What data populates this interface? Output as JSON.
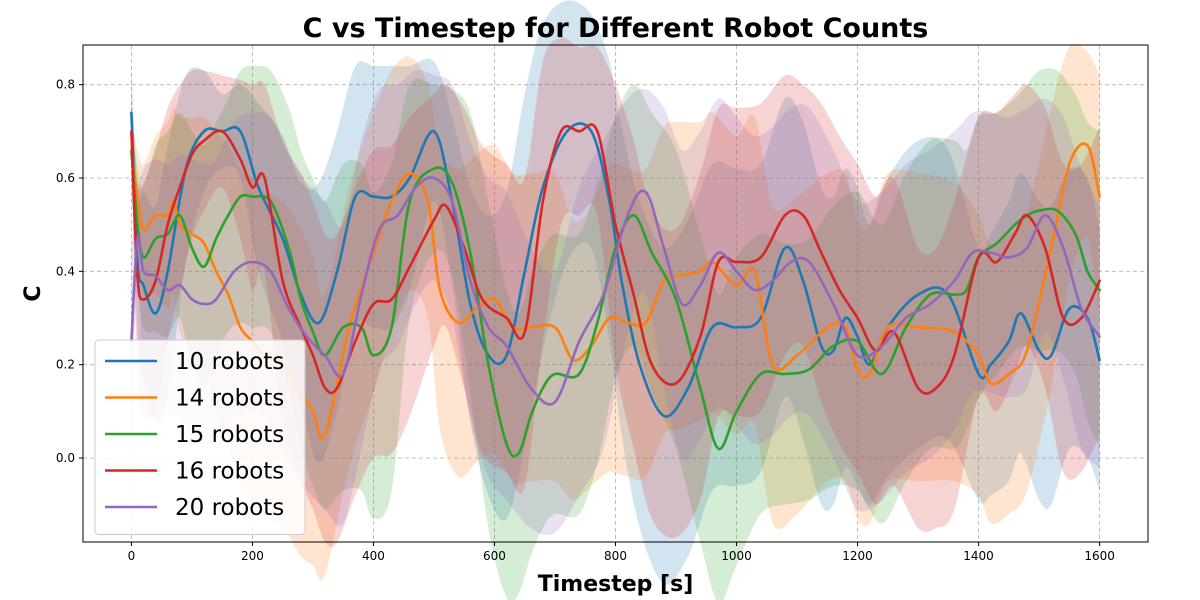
{
  "chart_data": {
    "type": "line",
    "title": "C vs Timestep for Different Robot Counts",
    "xlabel": "Timestep [s]",
    "ylabel": "C",
    "xlim": [
      -80,
      1680
    ],
    "ylim": [
      -0.18,
      0.885
    ],
    "xticks": [
      0,
      200,
      400,
      600,
      800,
      1000,
      1200,
      1400,
      1600
    ],
    "yticks": [
      0.0,
      0.2,
      0.4,
      0.6,
      0.8
    ],
    "ytick_labels": [
      "0.0",
      "0.2",
      "0.4",
      "0.6",
      "0.8"
    ],
    "grid": true,
    "legend_position": "lower-left",
    "series": [
      {
        "name": "10 robots",
        "color": "#1f77b4",
        "x": [
          0,
          10,
          20,
          40,
          60,
          90,
          120,
          150,
          180,
          210,
          250,
          280,
          310,
          340,
          370,
          400,
          430,
          460,
          500,
          530,
          560,
          590,
          620,
          650,
          680,
          720,
          760,
          790,
          810,
          840,
          880,
          920,
          960,
          1000,
          1040,
          1080,
          1110,
          1140,
          1160,
          1180,
          1200,
          1220,
          1250,
          1300,
          1350,
          1400,
          1420,
          1450,
          1470,
          1500,
          1520,
          1550,
          1580,
          1600
        ],
        "y": [
          0.74,
          0.42,
          0.37,
          0.31,
          0.4,
          0.62,
          0.7,
          0.7,
          0.7,
          0.58,
          0.47,
          0.35,
          0.29,
          0.4,
          0.56,
          0.56,
          0.56,
          0.6,
          0.7,
          0.55,
          0.33,
          0.22,
          0.22,
          0.4,
          0.58,
          0.7,
          0.7,
          0.55,
          0.38,
          0.2,
          0.09,
          0.15,
          0.28,
          0.28,
          0.3,
          0.45,
          0.38,
          0.24,
          0.23,
          0.3,
          0.26,
          0.2,
          0.28,
          0.35,
          0.35,
          0.18,
          0.2,
          0.25,
          0.31,
          0.23,
          0.22,
          0.32,
          0.3,
          0.21
        ],
        "band_width": [
          0.1,
          0.15,
          0.2,
          0.23,
          0.27,
          0.2,
          0.13,
          0.08,
          0.1,
          0.18,
          0.22,
          0.24,
          0.3,
          0.3,
          0.28,
          0.28,
          0.28,
          0.24,
          0.15,
          0.18,
          0.25,
          0.3,
          0.35,
          0.38,
          0.35,
          0.28,
          0.25,
          0.3,
          0.33,
          0.35,
          0.36,
          0.36,
          0.35,
          0.34,
          0.33,
          0.32,
          0.34,
          0.34,
          0.33,
          0.32,
          0.32,
          0.3,
          0.32,
          0.33,
          0.31,
          0.27,
          0.28,
          0.3,
          0.3,
          0.32,
          0.32,
          0.3,
          0.3,
          0.28
        ]
      },
      {
        "name": "14 robots",
        "color": "#ff7f0e",
        "x": [
          0,
          10,
          20,
          40,
          60,
          70,
          80,
          100,
          120,
          140,
          160,
          180,
          200,
          220,
          250,
          280,
          300,
          320,
          360,
          400,
          430,
          460,
          490,
          510,
          540,
          570,
          600,
          630,
          660,
          700,
          730,
          760,
          790,
          820,
          850,
          880,
          900,
          940,
          960,
          1000,
          1030,
          1060,
          1100,
          1150,
          1180,
          1200,
          1220,
          1250,
          1300,
          1360,
          1400,
          1420,
          1450,
          1480,
          1520,
          1550,
          1580,
          1600
        ],
        "y": [
          0.65,
          0.56,
          0.49,
          0.52,
          0.52,
          0.55,
          0.5,
          0.48,
          0.46,
          0.4,
          0.35,
          0.28,
          0.25,
          0.22,
          0.2,
          0.14,
          0.1,
          0.05,
          0.28,
          0.44,
          0.55,
          0.61,
          0.55,
          0.36,
          0.29,
          0.32,
          0.34,
          0.28,
          0.28,
          0.28,
          0.21,
          0.24,
          0.3,
          0.29,
          0.29,
          0.38,
          0.39,
          0.4,
          0.42,
          0.37,
          0.4,
          0.2,
          0.22,
          0.28,
          0.28,
          0.19,
          0.18,
          0.28,
          0.28,
          0.27,
          0.22,
          0.16,
          0.18,
          0.23,
          0.45,
          0.63,
          0.67,
          0.56
        ],
        "band_width": [
          0.08,
          0.1,
          0.14,
          0.17,
          0.2,
          0.2,
          0.23,
          0.25,
          0.27,
          0.3,
          0.32,
          0.34,
          0.35,
          0.35,
          0.35,
          0.35,
          0.33,
          0.3,
          0.3,
          0.3,
          0.28,
          0.25,
          0.25,
          0.3,
          0.33,
          0.33,
          0.33,
          0.33,
          0.33,
          0.33,
          0.3,
          0.3,
          0.33,
          0.33,
          0.33,
          0.33,
          0.33,
          0.32,
          0.32,
          0.32,
          0.33,
          0.34,
          0.34,
          0.33,
          0.33,
          0.32,
          0.32,
          0.33,
          0.33,
          0.32,
          0.3,
          0.3,
          0.3,
          0.3,
          0.3,
          0.25,
          0.2,
          0.26
        ]
      },
      {
        "name": "15 robots",
        "color": "#2ca02c",
        "x": [
          0,
          10,
          20,
          40,
          60,
          80,
          100,
          120,
          140,
          160,
          180,
          200,
          230,
          260,
          280,
          300,
          320,
          350,
          380,
          400,
          430,
          460,
          500,
          530,
          560,
          590,
          620,
          640,
          660,
          680,
          700,
          740,
          770,
          800,
          830,
          860,
          900,
          940,
          970,
          1000,
          1040,
          1080,
          1120,
          1160,
          1200,
          1240,
          1280,
          1320,
          1360,
          1380,
          1400,
          1430,
          1460,
          1480,
          1500,
          1530,
          1560,
          1580,
          1600
        ],
        "y": [
          0.66,
          0.5,
          0.43,
          0.47,
          0.48,
          0.52,
          0.45,
          0.41,
          0.47,
          0.52,
          0.56,
          0.56,
          0.55,
          0.45,
          0.34,
          0.27,
          0.22,
          0.28,
          0.28,
          0.22,
          0.28,
          0.55,
          0.62,
          0.59,
          0.44,
          0.2,
          0.03,
          0.01,
          0.09,
          0.15,
          0.18,
          0.18,
          0.29,
          0.45,
          0.52,
          0.44,
          0.34,
          0.15,
          0.02,
          0.1,
          0.18,
          0.18,
          0.19,
          0.24,
          0.25,
          0.18,
          0.28,
          0.35,
          0.35,
          0.36,
          0.43,
          0.46,
          0.5,
          0.52,
          0.53,
          0.53,
          0.48,
          0.4,
          0.36
        ],
        "band_width": [
          0.09,
          0.12,
          0.15,
          0.2,
          0.22,
          0.22,
          0.25,
          0.26,
          0.25,
          0.25,
          0.27,
          0.28,
          0.28,
          0.3,
          0.32,
          0.33,
          0.33,
          0.35,
          0.35,
          0.35,
          0.35,
          0.25,
          0.18,
          0.2,
          0.3,
          0.35,
          0.33,
          0.3,
          0.3,
          0.3,
          0.3,
          0.3,
          0.3,
          0.28,
          0.28,
          0.3,
          0.32,
          0.33,
          0.33,
          0.33,
          0.3,
          0.28,
          0.28,
          0.3,
          0.32,
          0.32,
          0.33,
          0.33,
          0.33,
          0.3,
          0.3,
          0.28,
          0.27,
          0.28,
          0.3,
          0.3,
          0.3,
          0.32,
          0.34
        ]
      },
      {
        "name": "16 robots",
        "color": "#d62728",
        "x": [
          0,
          10,
          20,
          40,
          60,
          80,
          100,
          120,
          150,
          180,
          200,
          220,
          250,
          280,
          300,
          320,
          340,
          370,
          400,
          430,
          460,
          500,
          520,
          550,
          580,
          620,
          650,
          680,
          710,
          740,
          770,
          800,
          830,
          860,
          900,
          940,
          970,
          1000,
          1040,
          1080,
          1110,
          1140,
          1170,
          1200,
          1230,
          1260,
          1300,
          1330,
          1360,
          1400,
          1430,
          1460,
          1480,
          1510,
          1540,
          1570,
          1600
        ],
        "y": [
          0.7,
          0.39,
          0.34,
          0.38,
          0.5,
          0.58,
          0.65,
          0.68,
          0.7,
          0.64,
          0.58,
          0.6,
          0.38,
          0.28,
          0.22,
          0.15,
          0.15,
          0.25,
          0.33,
          0.34,
          0.41,
          0.51,
          0.54,
          0.45,
          0.34,
          0.3,
          0.27,
          0.55,
          0.7,
          0.7,
          0.7,
          0.5,
          0.35,
          0.2,
          0.16,
          0.26,
          0.42,
          0.42,
          0.43,
          0.52,
          0.52,
          0.44,
          0.36,
          0.3,
          0.23,
          0.27,
          0.15,
          0.15,
          0.22,
          0.43,
          0.42,
          0.48,
          0.52,
          0.45,
          0.3,
          0.3,
          0.38
        ],
        "band_width": [
          0.07,
          0.2,
          0.25,
          0.28,
          0.25,
          0.22,
          0.18,
          0.15,
          0.12,
          0.17,
          0.22,
          0.2,
          0.3,
          0.33,
          0.33,
          0.33,
          0.33,
          0.33,
          0.33,
          0.33,
          0.32,
          0.27,
          0.26,
          0.3,
          0.33,
          0.33,
          0.33,
          0.3,
          0.2,
          0.18,
          0.18,
          0.3,
          0.33,
          0.33,
          0.33,
          0.35,
          0.33,
          0.33,
          0.33,
          0.3,
          0.28,
          0.32,
          0.33,
          0.33,
          0.33,
          0.33,
          0.3,
          0.3,
          0.33,
          0.3,
          0.32,
          0.3,
          0.28,
          0.3,
          0.33,
          0.33,
          0.33
        ]
      },
      {
        "name": "20 robots",
        "color": "#9467bd",
        "x": [
          0,
          10,
          20,
          40,
          60,
          80,
          100,
          120,
          140,
          170,
          200,
          230,
          260,
          290,
          320,
          350,
          380,
          410,
          440,
          470,
          500,
          530,
          560,
          590,
          620,
          660,
          700,
          740,
          780,
          820,
          850,
          880,
          910,
          940,
          970,
          1000,
          1030,
          1060,
          1090,
          1120,
          1160,
          1200,
          1240,
          1280,
          1320,
          1360,
          1390,
          1420,
          1450,
          1480,
          1510,
          1540,
          1570,
          1600
        ],
        "y": [
          0.25,
          0.47,
          0.4,
          0.39,
          0.36,
          0.37,
          0.34,
          0.33,
          0.34,
          0.4,
          0.42,
          0.4,
          0.32,
          0.26,
          0.22,
          0.18,
          0.35,
          0.49,
          0.52,
          0.58,
          0.6,
          0.55,
          0.38,
          0.28,
          0.24,
          0.15,
          0.12,
          0.25,
          0.35,
          0.52,
          0.57,
          0.45,
          0.33,
          0.37,
          0.44,
          0.4,
          0.36,
          0.38,
          0.42,
          0.42,
          0.33,
          0.22,
          0.24,
          0.3,
          0.33,
          0.38,
          0.44,
          0.44,
          0.43,
          0.45,
          0.52,
          0.45,
          0.32,
          0.26
        ],
        "band_width": [
          0.2,
          0.1,
          0.22,
          0.25,
          0.27,
          0.28,
          0.3,
          0.3,
          0.3,
          0.32,
          0.32,
          0.33,
          0.33,
          0.33,
          0.33,
          0.32,
          0.33,
          0.3,
          0.28,
          0.25,
          0.22,
          0.25,
          0.3,
          0.32,
          0.33,
          0.3,
          0.28,
          0.33,
          0.33,
          0.25,
          0.22,
          0.3,
          0.33,
          0.33,
          0.33,
          0.33,
          0.33,
          0.33,
          0.33,
          0.33,
          0.33,
          0.33,
          0.33,
          0.33,
          0.33,
          0.32,
          0.3,
          0.3,
          0.3,
          0.3,
          0.25,
          0.28,
          0.3,
          0.28
        ]
      }
    ]
  }
}
